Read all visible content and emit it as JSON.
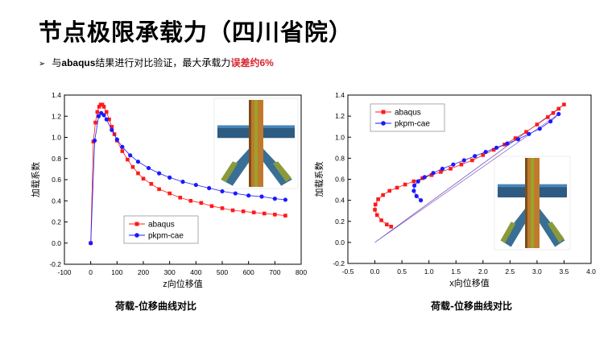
{
  "title": "节点极限承载力（四川省院）",
  "bullet": {
    "arrow": "➢",
    "prefix": "与",
    "software": "abaqus",
    "middle": "结果进行对比验证，最大承载力",
    "highlight": "误差约",
    "percent": "6%"
  },
  "colors": {
    "abaqus": "#ff1a1a",
    "pkpm": "#1a1aff",
    "highlight": "#d9232e"
  },
  "chart_data": [
    {
      "type": "scatter",
      "xlabel": "z向位移值",
      "ylabel": "加载系数",
      "caption": "荷载-位移曲线对比",
      "xlim": [
        -100,
        800
      ],
      "ylim": [
        -0.2,
        1.4
      ],
      "xticks": [
        "-100",
        "0",
        "100",
        "200",
        "300",
        "400",
        "500",
        "600",
        "700",
        "800"
      ],
      "yticks": [
        "-0.2",
        "0.0",
        "0.2",
        "0.4",
        "0.6",
        "0.8",
        "1.0",
        "1.2",
        "1.4"
      ],
      "legend": "bottom-center",
      "series": [
        {
          "name": "abaqus",
          "marker": "square",
          "x": [
            0,
            10,
            18,
            25,
            32,
            38,
            44,
            50,
            60,
            70,
            80,
            90,
            100,
            120,
            140,
            160,
            180,
            200,
            230,
            260,
            300,
            340,
            380,
            420,
            460,
            500,
            540,
            580,
            620,
            660,
            700,
            740
          ],
          "y": [
            0,
            0.96,
            1.14,
            1.24,
            1.29,
            1.31,
            1.31,
            1.29,
            1.24,
            1.17,
            1.1,
            1.03,
            0.97,
            0.87,
            0.79,
            0.72,
            0.66,
            0.61,
            0.56,
            0.51,
            0.47,
            0.43,
            0.4,
            0.38,
            0.35,
            0.33,
            0.31,
            0.3,
            0.29,
            0.28,
            0.27,
            0.26
          ]
        },
        {
          "name": "pkpm-cae",
          "marker": "circle",
          "x": [
            0,
            15,
            30,
            40,
            50,
            60,
            80,
            100,
            120,
            150,
            180,
            220,
            260,
            300,
            350,
            400,
            450,
            500,
            550,
            600,
            650,
            700,
            740
          ],
          "y": [
            0,
            0.97,
            1.2,
            1.23,
            1.21,
            1.17,
            1.07,
            0.98,
            0.91,
            0.83,
            0.77,
            0.71,
            0.66,
            0.62,
            0.58,
            0.55,
            0.52,
            0.49,
            0.47,
            0.45,
            0.44,
            0.42,
            0.41
          ]
        }
      ]
    },
    {
      "type": "scatter",
      "xlabel": "x向位移值",
      "ylabel": "加载系数",
      "caption": "荷载-位移曲线对比",
      "xlim": [
        -0.5,
        4.0
      ],
      "ylim": [
        -0.2,
        1.4
      ],
      "xticks": [
        "-0.5",
        "0.0",
        "0.5",
        "1.0",
        "1.5",
        "2.0",
        "2.5",
        "3.0",
        "3.5",
        "4.0"
      ],
      "yticks": [
        "-0.2",
        "0.0",
        "0.2",
        "0.4",
        "0.6",
        "0.8",
        "1.0",
        "1.2",
        "1.4"
      ],
      "legend": "top-left",
      "series": [
        {
          "name": "abaqus",
          "marker": "square",
          "x": [
            0.3,
            0.22,
            0.12,
            0.04,
            0.0,
            0.01,
            0.06,
            0.15,
            0.27,
            0.41,
            0.56,
            0.72,
            0.88,
            1.05,
            1.22,
            1.4,
            1.6,
            1.8,
            2.0,
            2.2,
            2.4,
            2.6,
            2.8,
            3.0,
            3.2,
            3.3,
            3.4,
            3.5
          ],
          "y": [
            0.15,
            0.17,
            0.21,
            0.26,
            0.31,
            0.36,
            0.41,
            0.45,
            0.49,
            0.52,
            0.55,
            0.58,
            0.61,
            0.64,
            0.67,
            0.7,
            0.74,
            0.78,
            0.83,
            0.88,
            0.93,
            0.99,
            1.05,
            1.12,
            1.19,
            1.23,
            1.27,
            1.31
          ]
        },
        {
          "name": "pkpm-cae",
          "marker": "circle",
          "x": [
            0.85,
            0.77,
            0.72,
            0.73,
            0.8,
            0.92,
            1.08,
            1.25,
            1.45,
            1.65,
            1.85,
            2.05,
            2.25,
            2.45,
            2.65,
            2.85,
            3.05,
            3.25,
            3.4
          ],
          "y": [
            0.4,
            0.44,
            0.49,
            0.54,
            0.58,
            0.62,
            0.66,
            0.7,
            0.74,
            0.78,
            0.82,
            0.86,
            0.9,
            0.94,
            0.98,
            1.03,
            1.08,
            1.15,
            1.22
          ]
        }
      ]
    }
  ]
}
